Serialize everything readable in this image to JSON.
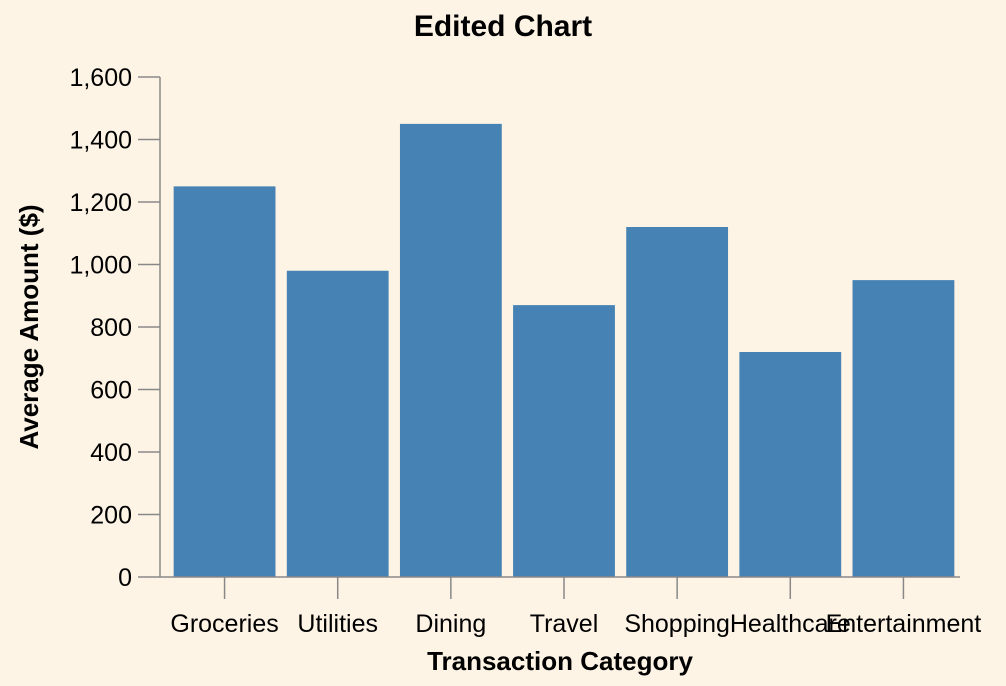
{
  "chart_data": {
    "type": "bar",
    "title": "Edited Chart",
    "xlabel": "Transaction Category",
    "ylabel": "Average Amount ($)",
    "categories": [
      "Groceries",
      "Utilities",
      "Dining",
      "Travel",
      "Shopping",
      "Healthcare",
      "Entertainment"
    ],
    "values": [
      1250,
      980,
      1450,
      870,
      1120,
      720,
      950
    ],
    "ylim": [
      0,
      1600
    ],
    "yticks": [
      "0",
      "200",
      "400",
      "600",
      "800",
      "1,000",
      "1,200",
      "1,400",
      "1,600"
    ],
    "grid": false,
    "bar_color": "#4682b4",
    "background_color": "#fef4e6"
  }
}
